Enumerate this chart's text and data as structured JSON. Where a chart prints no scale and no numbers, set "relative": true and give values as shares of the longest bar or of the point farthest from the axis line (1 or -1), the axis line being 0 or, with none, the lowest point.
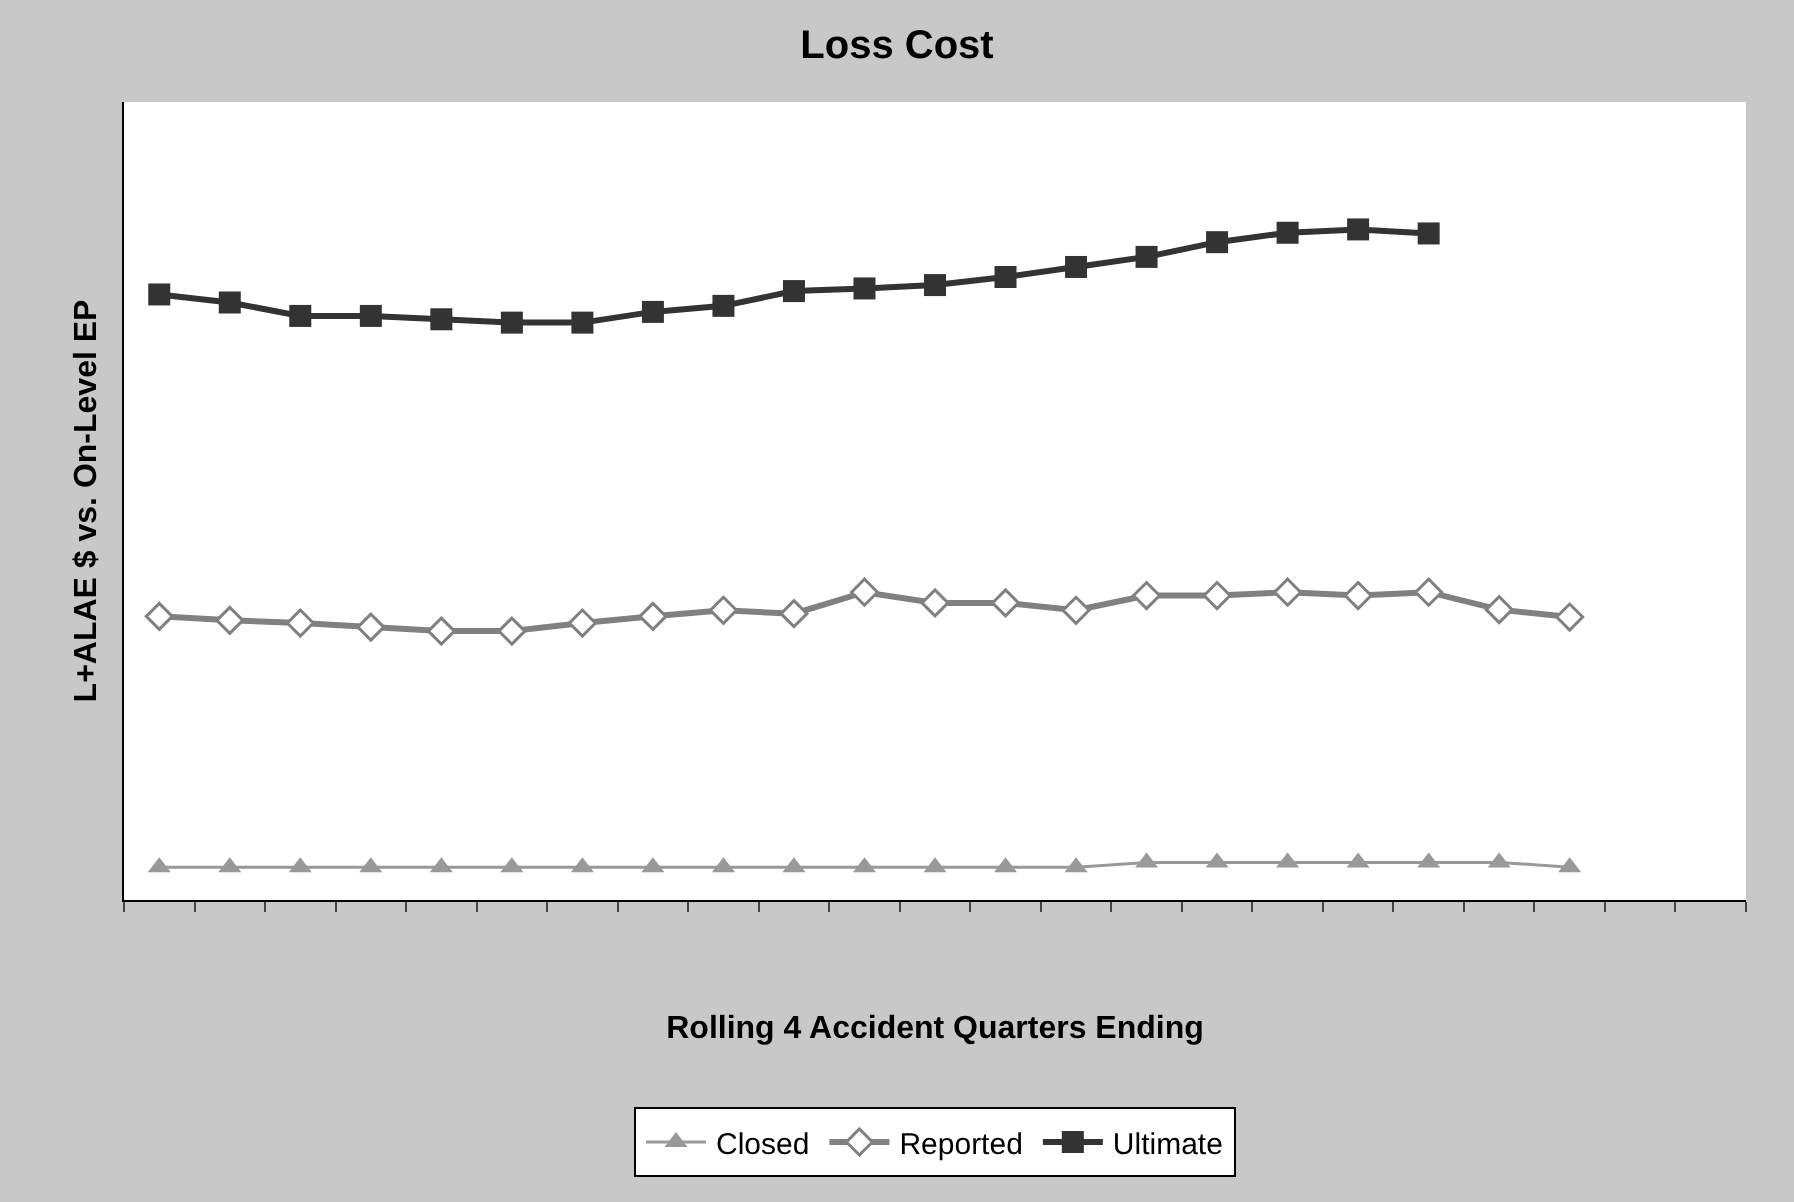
{
  "chart_data": {
    "type": "line",
    "title": "Loss Cost",
    "xlabel": "Rolling 4 Accident Quarters Ending",
    "ylabel": "L+ALAE $ vs. On-Level EP",
    "relative": true,
    "categories": [
      null,
      null,
      null,
      null,
      null,
      null,
      null,
      null,
      null,
      null,
      null,
      null,
      null,
      null,
      null,
      null,
      null,
      null,
      null,
      null,
      null,
      null,
      null
    ],
    "series": [
      {
        "name": "Closed",
        "color": "#999999",
        "marker": "triangle",
        "values": [
          0.049,
          0.049,
          0.049,
          0.049,
          0.049,
          0.049,
          0.049,
          0.049,
          0.049,
          0.049,
          0.049,
          0.049,
          0.049,
          0.049,
          0.056,
          0.056,
          0.056,
          0.056,
          0.056,
          0.056,
          0.049,
          null,
          null
        ]
      },
      {
        "name": "Reported",
        "color": "#808080",
        "marker": "diamond",
        "values": [
          0.423,
          0.417,
          0.413,
          0.407,
          0.401,
          0.401,
          0.413,
          0.423,
          0.432,
          0.427,
          0.459,
          0.443,
          0.443,
          0.432,
          0.454,
          0.454,
          0.459,
          0.454,
          0.459,
          0.433,
          0.422,
          null,
          null
        ]
      },
      {
        "name": "Ultimate",
        "color": "#333333",
        "marker": "square",
        "values": [
          0.903,
          0.891,
          0.871,
          0.871,
          0.866,
          0.861,
          0.861,
          0.877,
          0.886,
          0.908,
          0.912,
          0.917,
          0.929,
          0.944,
          0.959,
          0.981,
          0.995,
          1.0,
          0.994,
          null,
          null,
          null,
          null
        ]
      }
    ],
    "legend": "bottom",
    "line_style": "solid"
  }
}
